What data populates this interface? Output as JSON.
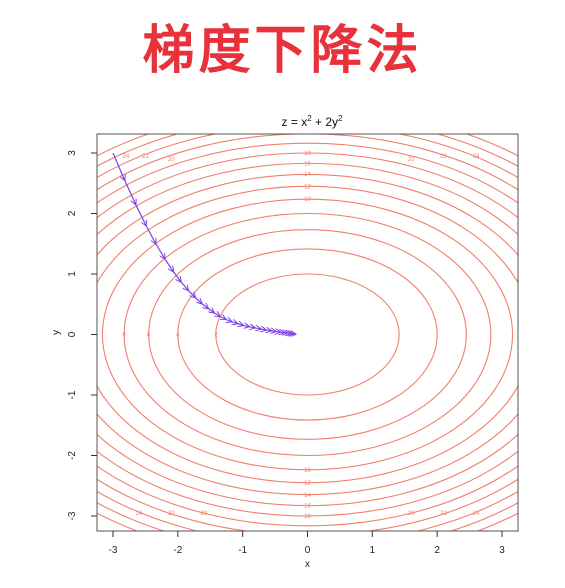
{
  "headline": "梯度下降法",
  "colors": {
    "headline": "#e8313a",
    "contour": "#f07f6c",
    "path": "#7b3fe4",
    "frame": "#555555"
  },
  "chart_data": {
    "type": "contour",
    "title_main": "z = x",
    "title_mid": " + 2y",
    "title_exp": "2",
    "xlabel": "x",
    "ylabel": "y",
    "xlim": [
      -3,
      3
    ],
    "ylim": [
      -3,
      3
    ],
    "x_ticks": [
      -3,
      -2,
      -1,
      0,
      1,
      2,
      3
    ],
    "y_ticks": [
      -3,
      -2,
      -1,
      0,
      1,
      2,
      3
    ],
    "contour_levels": [
      2,
      4,
      6,
      8,
      10,
      12,
      14,
      16,
      18,
      20,
      22,
      24,
      26,
      28
    ],
    "contour_labels": [
      {
        "text": "18",
        "x": 0,
        "y": 3
      },
      {
        "text": "16",
        "x": 0,
        "y": 2.83
      },
      {
        "text": "14",
        "x": 0,
        "y": 2.65
      },
      {
        "text": "12",
        "x": 0,
        "y": 2.45
      },
      {
        "text": "10",
        "x": 0,
        "y": 2.24
      },
      {
        "text": "20",
        "x": -2.1,
        "y": 2.9
      },
      {
        "text": "22",
        "x": -2.5,
        "y": 2.95
      },
      {
        "text": "24",
        "x": -2.8,
        "y": 2.95
      },
      {
        "text": "20",
        "x": 1.6,
        "y": 2.9
      },
      {
        "text": "22",
        "x": 2.1,
        "y": 2.95
      },
      {
        "text": "24",
        "x": 2.6,
        "y": 2.95
      },
      {
        "text": "18",
        "x": 0,
        "y": -3
      },
      {
        "text": "16",
        "x": 0,
        "y": -2.83
      },
      {
        "text": "14",
        "x": 0,
        "y": -2.65
      },
      {
        "text": "12",
        "x": 0,
        "y": -2.45
      },
      {
        "text": "10",
        "x": 0,
        "y": -2.24
      },
      {
        "text": "20",
        "x": -1.6,
        "y": -2.95
      },
      {
        "text": "22",
        "x": -2.1,
        "y": -2.95
      },
      {
        "text": "24",
        "x": -2.6,
        "y": -2.95
      },
      {
        "text": "20",
        "x": 1.6,
        "y": -2.95
      },
      {
        "text": "22",
        "x": 2.1,
        "y": -2.95
      },
      {
        "text": "24",
        "x": 2.6,
        "y": -2.95
      },
      {
        "text": "8",
        "x": -2.83,
        "y": 0
      },
      {
        "text": "6",
        "x": -2.45,
        "y": 0
      },
      {
        "text": "4",
        "x": -2.0,
        "y": 0
      },
      {
        "text": "2",
        "x": -1.41,
        "y": 0
      }
    ],
    "descent_path": {
      "x": [
        -3.0,
        -2.82,
        -2.65,
        -2.49,
        -2.34,
        -2.2,
        -2.07,
        -1.95,
        -1.84,
        -1.73,
        -1.63,
        -1.53,
        -1.44,
        -1.35,
        -1.26,
        -1.17,
        -1.08,
        -0.99,
        -0.9,
        -0.81,
        -0.72,
        -0.64,
        -0.56,
        -0.49,
        -0.42,
        -0.36,
        -0.31,
        -0.26,
        -0.22,
        -0.18
      ],
      "y": [
        3.0,
        2.55,
        2.15,
        1.8,
        1.5,
        1.25,
        1.04,
        0.87,
        0.73,
        0.61,
        0.51,
        0.43,
        0.36,
        0.3,
        0.25,
        0.21,
        0.18,
        0.15,
        0.13,
        0.11,
        0.09,
        0.075,
        0.062,
        0.05,
        0.04,
        0.03,
        0.022,
        0.015,
        0.01,
        0.005
      ]
    }
  }
}
